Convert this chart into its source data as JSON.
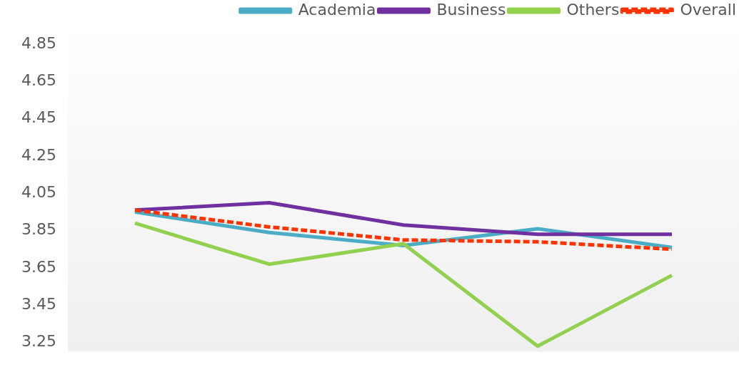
{
  "chart_data": {
    "type": "line",
    "categories": [
      null,
      null,
      null,
      null,
      null
    ],
    "series": [
      {
        "name": "Academia",
        "color": "#4bacc6",
        "values": [
          3.95,
          3.84,
          3.77,
          3.86,
          3.76
        ]
      },
      {
        "name": "Business",
        "color": "#7030a0",
        "values": [
          3.96,
          4.0,
          3.88,
          3.83,
          3.83
        ]
      },
      {
        "name": "Others",
        "color": "#92d050",
        "values": [
          3.89,
          3.67,
          3.78,
          3.23,
          3.61
        ]
      },
      {
        "name": "Overall",
        "color": "#ff3300",
        "values": [
          3.96,
          3.87,
          3.8,
          3.79,
          3.75
        ],
        "line_style": "dashed"
      }
    ],
    "ylim": [
      3.2,
      4.95
    ],
    "yticks": [
      3.25,
      3.45,
      3.65,
      3.85,
      4.05,
      4.25,
      4.45,
      4.65,
      4.85
    ],
    "grid": false,
    "legend": "top right",
    "marker": "none",
    "line_style": "solid"
  }
}
